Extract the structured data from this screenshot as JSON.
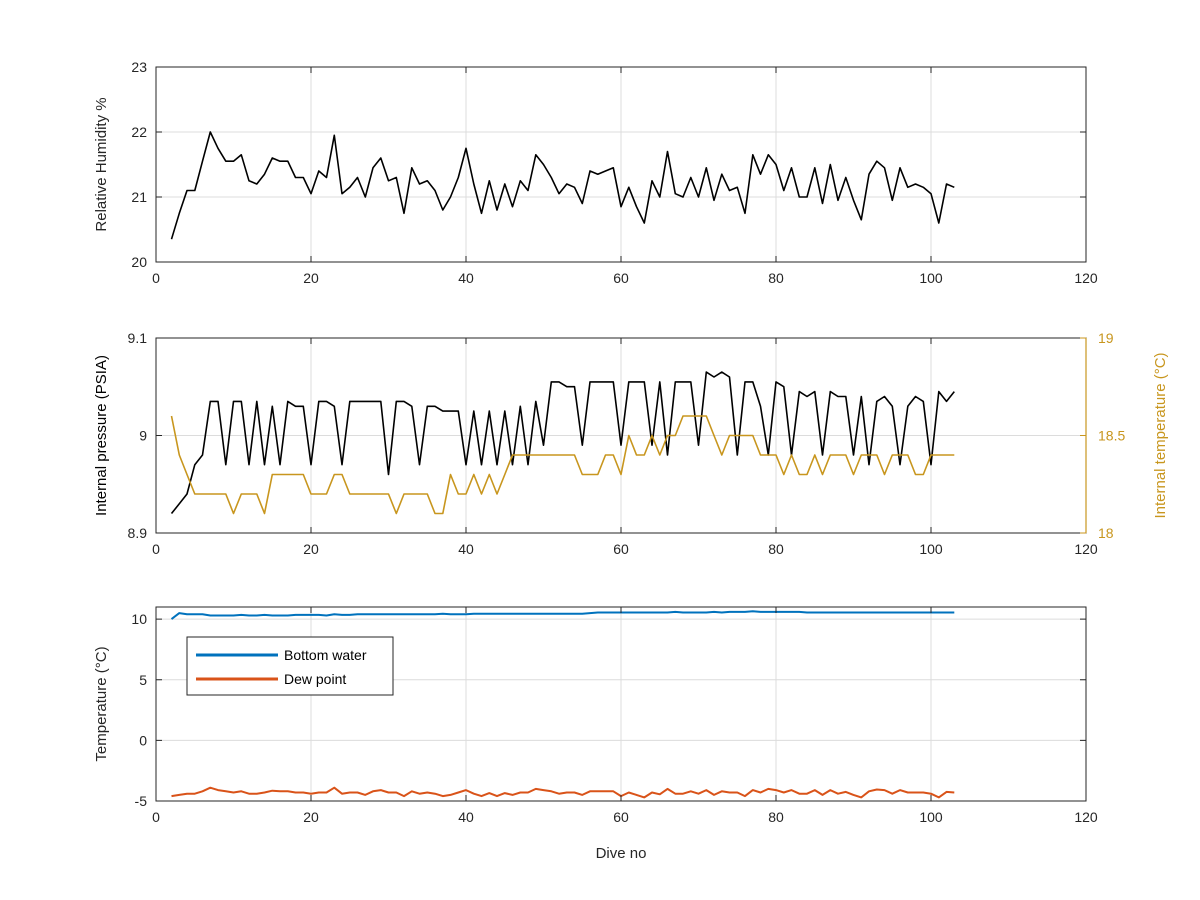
{
  "chart_data": [
    {
      "type": "line",
      "ylabel": "Relative Humidity %",
      "xlim": [
        0,
        120
      ],
      "ylim": [
        20,
        23
      ],
      "xticks": [
        "0",
        "20",
        "40",
        "60",
        "80",
        "100",
        "120"
      ],
      "yticks": [
        "20",
        "21",
        "22",
        "23"
      ],
      "grid": true,
      "series": [
        {
          "color": "#000000",
          "x": [
            2,
            3,
            4,
            5,
            6,
            7,
            8,
            9,
            10,
            11,
            12,
            13,
            14,
            15,
            16,
            17,
            18,
            19,
            20,
            21,
            22,
            23,
            24,
            25,
            26,
            27,
            28,
            29,
            30,
            31,
            32,
            33,
            34,
            35,
            36,
            37,
            38,
            39,
            40,
            41,
            42,
            43,
            44,
            45,
            46,
            47,
            48,
            49,
            50,
            51,
            52,
            53,
            54,
            55,
            56,
            57,
            58,
            59,
            60,
            61,
            62,
            63,
            64,
            65,
            66,
            67,
            68,
            69,
            70,
            71,
            72,
            73,
            74,
            75,
            76,
            77,
            78,
            79,
            80,
            81,
            82,
            83,
            84,
            85,
            86,
            87,
            88,
            89,
            90,
            91,
            92,
            93,
            94,
            95,
            96,
            97,
            98,
            99,
            100,
            101,
            102,
            103
          ],
          "y": [
            20.35,
            20.75,
            21.1,
            21.1,
            21.55,
            22.0,
            21.75,
            21.55,
            21.55,
            21.65,
            21.25,
            21.2,
            21.35,
            21.6,
            21.55,
            21.55,
            21.3,
            21.3,
            21.05,
            21.4,
            21.3,
            21.95,
            21.05,
            21.15,
            21.3,
            21.0,
            21.45,
            21.6,
            21.25,
            21.3,
            20.75,
            21.45,
            21.2,
            21.25,
            21.1,
            20.8,
            21.0,
            21.3,
            21.75,
            21.2,
            20.75,
            21.25,
            20.8,
            21.2,
            20.85,
            21.25,
            21.1,
            21.65,
            21.5,
            21.3,
            21.05,
            21.2,
            21.15,
            20.9,
            21.4,
            21.35,
            21.4,
            21.45,
            20.85,
            21.15,
            20.85,
            20.6,
            21.25,
            21.0,
            21.7,
            21.05,
            21.0,
            21.3,
            21.0,
            21.45,
            20.95,
            21.35,
            21.1,
            21.15,
            20.75,
            21.65,
            21.35,
            21.65,
            21.5,
            21.1,
            21.45,
            21.0,
            21.0,
            21.45,
            20.9,
            21.5,
            20.95,
            21.3,
            20.95,
            20.65,
            21.35,
            21.55,
            21.45,
            20.95,
            21.45,
            21.15,
            21.2,
            21.15,
            21.05,
            20.6,
            21.2,
            21.15
          ]
        }
      ]
    },
    {
      "type": "line",
      "ylabel": "Internal pressure (PSIA)",
      "y2label": "Internal temperature (°C)",
      "xlim": [
        0,
        120
      ],
      "ylim": [
        8.9,
        9.1
      ],
      "y2lim": [
        18,
        19
      ],
      "xticks": [
        "0",
        "20",
        "40",
        "60",
        "80",
        "100",
        "120"
      ],
      "yticks": [
        "8.9",
        "9",
        "9.1"
      ],
      "y2ticks": [
        "18",
        "18.5",
        "19"
      ],
      "grid": true,
      "series": [
        {
          "axis": "left",
          "color": "#000000",
          "x": [
            2,
            3,
            4,
            5,
            6,
            7,
            8,
            9,
            10,
            11,
            12,
            13,
            14,
            15,
            16,
            17,
            18,
            19,
            20,
            21,
            22,
            23,
            24,
            25,
            26,
            27,
            28,
            29,
            30,
            31,
            32,
            33,
            34,
            35,
            36,
            37,
            38,
            39,
            40,
            41,
            42,
            43,
            44,
            45,
            46,
            47,
            48,
            49,
            50,
            51,
            52,
            53,
            54,
            55,
            56,
            57,
            58,
            59,
            60,
            61,
            62,
            63,
            64,
            65,
            66,
            67,
            68,
            69,
            70,
            71,
            72,
            73,
            74,
            75,
            76,
            77,
            78,
            79,
            80,
            81,
            82,
            83,
            84,
            85,
            86,
            87,
            88,
            89,
            90,
            91,
            92,
            93,
            94,
            95,
            96,
            97,
            98,
            99,
            100,
            101,
            102,
            103
          ],
          "y": [
            8.92,
            8.93,
            8.94,
            8.97,
            8.98,
            9.035,
            9.035,
            8.97,
            9.035,
            9.035,
            8.97,
            9.035,
            8.97,
            9.03,
            8.97,
            9.035,
            9.03,
            9.03,
            8.97,
            9.035,
            9.035,
            9.03,
            8.97,
            9.035,
            9.035,
            9.035,
            9.035,
            9.035,
            8.96,
            9.035,
            9.035,
            9.03,
            8.97,
            9.03,
            9.03,
            9.025,
            9.025,
            9.025,
            8.97,
            9.025,
            8.97,
            9.025,
            8.97,
            9.025,
            8.97,
            9.03,
            8.97,
            9.035,
            8.99,
            9.055,
            9.055,
            9.05,
            9.05,
            8.99,
            9.055,
            9.055,
            9.055,
            9.055,
            8.99,
            9.055,
            9.055,
            9.055,
            8.99,
            9.055,
            8.98,
            9.055,
            9.055,
            9.055,
            8.99,
            9.065,
            9.06,
            9.065,
            9.06,
            8.98,
            9.055,
            9.055,
            9.03,
            8.98,
            9.055,
            9.05,
            8.98,
            9.045,
            9.04,
            9.045,
            8.98,
            9.045,
            9.04,
            9.04,
            8.98,
            9.04,
            8.97,
            9.035,
            9.04,
            9.03,
            8.97,
            9.03,
            9.04,
            9.035,
            8.97,
            9.045,
            9.035,
            9.045
          ]
        },
        {
          "axis": "right",
          "color": "#c8961e",
          "x": [
            2,
            3,
            4,
            5,
            6,
            7,
            8,
            9,
            10,
            11,
            12,
            13,
            14,
            15,
            16,
            17,
            18,
            19,
            20,
            21,
            22,
            23,
            24,
            25,
            26,
            27,
            28,
            29,
            30,
            31,
            32,
            33,
            34,
            35,
            36,
            37,
            38,
            39,
            40,
            41,
            42,
            43,
            44,
            45,
            46,
            47,
            48,
            49,
            50,
            51,
            52,
            53,
            54,
            55,
            56,
            57,
            58,
            59,
            60,
            61,
            62,
            63,
            64,
            65,
            66,
            67,
            68,
            69,
            70,
            71,
            72,
            73,
            74,
            75,
            76,
            77,
            78,
            79,
            80,
            81,
            82,
            83,
            84,
            85,
            86,
            87,
            88,
            89,
            90,
            91,
            92,
            93,
            94,
            95,
            96,
            97,
            98,
            99,
            100,
            101,
            102,
            103
          ],
          "y": [
            18.6,
            18.4,
            18.3,
            18.2,
            18.2,
            18.2,
            18.2,
            18.2,
            18.1,
            18.2,
            18.2,
            18.2,
            18.1,
            18.3,
            18.3,
            18.3,
            18.3,
            18.3,
            18.2,
            18.2,
            18.2,
            18.3,
            18.3,
            18.2,
            18.2,
            18.2,
            18.2,
            18.2,
            18.2,
            18.1,
            18.2,
            18.2,
            18.2,
            18.2,
            18.1,
            18.1,
            18.3,
            18.2,
            18.2,
            18.3,
            18.2,
            18.3,
            18.2,
            18.3,
            18.4,
            18.4,
            18.4,
            18.4,
            18.4,
            18.4,
            18.4,
            18.4,
            18.4,
            18.3,
            18.3,
            18.3,
            18.4,
            18.4,
            18.3,
            18.5,
            18.4,
            18.4,
            18.5,
            18.4,
            18.5,
            18.5,
            18.6,
            18.6,
            18.6,
            18.6,
            18.5,
            18.4,
            18.5,
            18.5,
            18.5,
            18.5,
            18.4,
            18.4,
            18.4,
            18.3,
            18.4,
            18.3,
            18.3,
            18.4,
            18.3,
            18.4,
            18.4,
            18.4,
            18.3,
            18.4,
            18.4,
            18.4,
            18.3,
            18.4,
            18.4,
            18.4,
            18.3,
            18.3,
            18.4,
            18.4,
            18.4,
            18.4
          ]
        }
      ]
    },
    {
      "type": "line",
      "ylabel": "Temperature (°C)",
      "xlabel": "Dive no",
      "xlim": [
        0,
        120
      ],
      "ylim": [
        -5,
        11
      ],
      "xticks": [
        "0",
        "20",
        "40",
        "60",
        "80",
        "100",
        "120"
      ],
      "yticks": [
        "-5",
        "0",
        "5",
        "10"
      ],
      "grid": true,
      "legend_position": "upper-left",
      "series": [
        {
          "name": "Bottom water",
          "color": "#0072bd",
          "x": [
            2,
            3,
            4,
            5,
            6,
            7,
            8,
            9,
            10,
            11,
            12,
            13,
            14,
            15,
            16,
            17,
            18,
            19,
            20,
            21,
            22,
            23,
            24,
            25,
            26,
            27,
            28,
            29,
            30,
            31,
            32,
            33,
            34,
            35,
            36,
            37,
            38,
            39,
            40,
            41,
            42,
            43,
            44,
            45,
            46,
            47,
            48,
            49,
            50,
            51,
            52,
            53,
            54,
            55,
            56,
            57,
            58,
            59,
            60,
            61,
            62,
            63,
            64,
            65,
            66,
            67,
            68,
            69,
            70,
            71,
            72,
            73,
            74,
            75,
            76,
            77,
            78,
            79,
            80,
            81,
            82,
            83,
            84,
            85,
            86,
            87,
            88,
            89,
            90,
            91,
            92,
            93,
            94,
            95,
            96,
            97,
            98,
            99,
            100,
            101,
            102,
            103
          ],
          "y": [
            10.0,
            10.5,
            10.4,
            10.4,
            10.4,
            10.3,
            10.3,
            10.3,
            10.3,
            10.35,
            10.3,
            10.3,
            10.35,
            10.3,
            10.3,
            10.3,
            10.35,
            10.35,
            10.35,
            10.35,
            10.3,
            10.4,
            10.35,
            10.35,
            10.4,
            10.4,
            10.4,
            10.4,
            10.4,
            10.4,
            10.4,
            10.4,
            10.4,
            10.4,
            10.4,
            10.45,
            10.4,
            10.4,
            10.4,
            10.45,
            10.45,
            10.45,
            10.45,
            10.45,
            10.45,
            10.45,
            10.45,
            10.45,
            10.45,
            10.45,
            10.45,
            10.45,
            10.45,
            10.45,
            10.5,
            10.55,
            10.55,
            10.55,
            10.55,
            10.55,
            10.55,
            10.55,
            10.55,
            10.55,
            10.55,
            10.6,
            10.55,
            10.55,
            10.55,
            10.55,
            10.6,
            10.55,
            10.6,
            10.6,
            10.6,
            10.65,
            10.6,
            10.6,
            10.6,
            10.6,
            10.6,
            10.6,
            10.55,
            10.55,
            10.55,
            10.55,
            10.55,
            10.55,
            10.55,
            10.55,
            10.55,
            10.55,
            10.55,
            10.55,
            10.55,
            10.55,
            10.55,
            10.55,
            10.55,
            10.55,
            10.55,
            10.55
          ]
        },
        {
          "name": "Dew point",
          "color": "#d95319",
          "x": [
            2,
            3,
            4,
            5,
            6,
            7,
            8,
            9,
            10,
            11,
            12,
            13,
            14,
            15,
            16,
            17,
            18,
            19,
            20,
            21,
            22,
            23,
            24,
            25,
            26,
            27,
            28,
            29,
            30,
            31,
            32,
            33,
            34,
            35,
            36,
            37,
            38,
            39,
            40,
            41,
            42,
            43,
            44,
            45,
            46,
            47,
            48,
            49,
            50,
            51,
            52,
            53,
            54,
            55,
            56,
            57,
            58,
            59,
            60,
            61,
            62,
            63,
            64,
            65,
            66,
            67,
            68,
            69,
            70,
            71,
            72,
            73,
            74,
            75,
            76,
            77,
            78,
            79,
            80,
            81,
            82,
            83,
            84,
            85,
            86,
            87,
            88,
            89,
            90,
            91,
            92,
            93,
            94,
            95,
            96,
            97,
            98,
            99,
            100,
            101,
            102,
            103
          ],
          "y": [
            -4.6,
            -4.5,
            -4.4,
            -4.4,
            -4.2,
            -3.9,
            -4.1,
            -4.2,
            -4.3,
            -4.2,
            -4.4,
            -4.4,
            -4.3,
            -4.15,
            -4.2,
            -4.2,
            -4.3,
            -4.3,
            -4.4,
            -4.3,
            -4.3,
            -3.9,
            -4.4,
            -4.3,
            -4.3,
            -4.5,
            -4.2,
            -4.1,
            -4.3,
            -4.3,
            -4.6,
            -4.2,
            -4.4,
            -4.3,
            -4.4,
            -4.6,
            -4.5,
            -4.3,
            -4.1,
            -4.4,
            -4.6,
            -4.35,
            -4.6,
            -4.35,
            -4.5,
            -4.3,
            -4.3,
            -4.0,
            -4.1,
            -4.2,
            -4.4,
            -4.3,
            -4.3,
            -4.5,
            -4.2,
            -4.2,
            -4.2,
            -4.2,
            -4.6,
            -4.3,
            -4.5,
            -4.7,
            -4.3,
            -4.45,
            -4.0,
            -4.4,
            -4.4,
            -4.2,
            -4.4,
            -4.1,
            -4.5,
            -4.2,
            -4.3,
            -4.3,
            -4.6,
            -4.1,
            -4.3,
            -4.0,
            -4.1,
            -4.3,
            -4.1,
            -4.4,
            -4.4,
            -4.1,
            -4.5,
            -4.1,
            -4.4,
            -4.25,
            -4.5,
            -4.7,
            -4.2,
            -4.05,
            -4.1,
            -4.4,
            -4.1,
            -4.3,
            -4.3,
            -4.3,
            -4.4,
            -4.7,
            -4.25,
            -4.3
          ]
        }
      ]
    }
  ]
}
